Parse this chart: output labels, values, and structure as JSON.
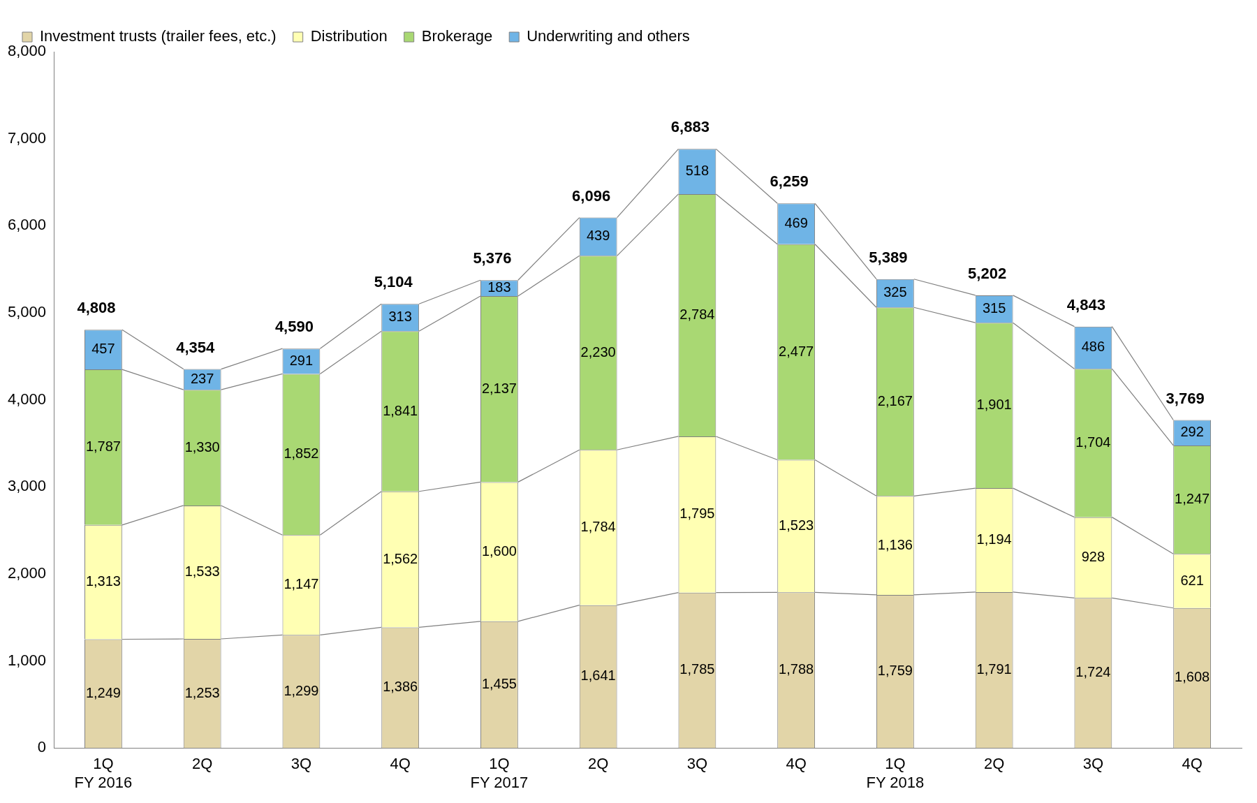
{
  "chart_data": {
    "type": "bar",
    "stacked": true,
    "categories": [
      "1Q\nFY 2016",
      "2Q",
      "3Q",
      "4Q",
      "1Q\nFY 2017",
      "2Q",
      "3Q",
      "4Q",
      "1Q\nFY 2018",
      "2Q",
      "3Q",
      "4Q"
    ],
    "series": [
      {
        "name": "Investment trusts (trailer fees, etc.)",
        "color": "#e2d5a8",
        "values": [
          1249,
          1253,
          1299,
          1386,
          1455,
          1641,
          1785,
          1788,
          1759,
          1791,
          1724,
          1608
        ],
        "value_labels": [
          "1,249",
          "1,253",
          "1,299",
          "1,386",
          "1,455",
          "1,641",
          "1,785",
          "1,788",
          "1,759",
          "1,791",
          "1,724",
          "1,608"
        ]
      },
      {
        "name": "Distribution",
        "color": "#ffffb3",
        "values": [
          1313,
          1533,
          1147,
          1562,
          1600,
          1784,
          1795,
          1523,
          1136,
          1194,
          928,
          621
        ],
        "value_labels": [
          "1,313",
          "1,533",
          "1,147",
          "1,562",
          "1,600",
          "1,784",
          "1,795",
          "1,523",
          "1,136",
          "1,194",
          "928",
          "621"
        ]
      },
      {
        "name": "Brokerage",
        "color": "#a9d873",
        "values": [
          1787,
          1330,
          1852,
          1841,
          2137,
          2230,
          2784,
          2477,
          2167,
          1901,
          1704,
          1247
        ],
        "value_labels": [
          "1,787",
          "1,330",
          "1,852",
          "1,841",
          "2,137",
          "2,230",
          "2,784",
          "2,477",
          "2,167",
          "1,901",
          "1,704",
          "1,247"
        ]
      },
      {
        "name": "Underwriting and others",
        "color": "#6fb4e6",
        "values": [
          457,
          237,
          291,
          313,
          183,
          439,
          518,
          469,
          325,
          315,
          486,
          292
        ],
        "value_labels": [
          "457",
          "237",
          "291",
          "313",
          "183",
          "439",
          "518",
          "469",
          "325",
          "315",
          "486",
          "292"
        ]
      }
    ],
    "totals": [
      "4,808",
      "4,354",
      "4,590",
      "5,104",
      "5,376",
      "6,096",
      "6,883",
      "6,259",
      "5,389",
      "5,202",
      "4,843",
      "3,769"
    ],
    "ylim": [
      0,
      8000
    ],
    "yticks": [
      0,
      {
        "value": 1000,
        "label": "1,000"
      },
      {
        "value": 2000,
        "label": "2,000"
      },
      {
        "value": 3000,
        "label": "3,000"
      },
      {
        "value": 4000,
        "label": "4,000"
      },
      {
        "value": 5000,
        "label": "5,000"
      },
      {
        "value": 6000,
        "label": "6,000"
      },
      {
        "value": 7000,
        "label": "7,000"
      },
      {
        "value": 8000,
        "label": "8,000"
      }
    ],
    "grid": false,
    "legend": "top left"
  }
}
